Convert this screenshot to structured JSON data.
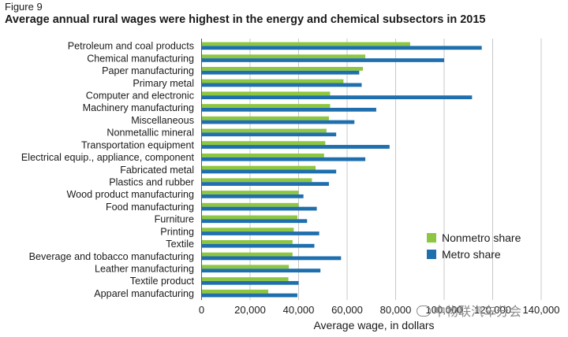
{
  "figure_label": "Figure 9",
  "chart_data": {
    "type": "bar",
    "orientation": "horizontal",
    "title": "Average annual rural wages were highest in the energy and chemical subsectors in 2015",
    "xlabel": "Average wage, in dollars",
    "ylabel": "",
    "xlim": [
      0,
      140000
    ],
    "xticks": [
      0,
      20000,
      40000,
      60000,
      80000,
      100000,
      120000,
      140000
    ],
    "xtick_labels": [
      "0",
      "20,000",
      "40,000",
      "60,000",
      "80,000",
      "100,000",
      "120,000",
      "140,000"
    ],
    "grid": "vertical",
    "legend_position": "bottom-right",
    "categories": [
      "Petroleum and coal products",
      "Chemical manufacturing",
      "Paper manufacturing",
      "Primary metal",
      "Computer and electronic",
      "Machinery manufacturing",
      "Miscellaneous",
      "Nonmetallic mineral",
      "Transportation equipment",
      "Electrical equip., appliance, component",
      "Fabricated metal",
      "Plastics and rubber",
      "Wood product manufacturing",
      "Food manufacturing",
      "Furniture",
      "Printing",
      "Textile",
      "Beverage and tobacco manufacturing",
      "Leather manufacturing",
      "Textile product",
      "Apparel manufacturing"
    ],
    "series": [
      {
        "name": "Nonmetro share",
        "color": "#8dc63f",
        "values": [
          86000,
          67500,
          66500,
          58500,
          53000,
          53000,
          52500,
          51500,
          51000,
          50500,
          47000,
          45500,
          40000,
          40000,
          39500,
          38000,
          37500,
          37500,
          36000,
          35800,
          27500
        ]
      },
      {
        "name": "Metro share",
        "color": "#1f6fae",
        "values": [
          115500,
          100000,
          65000,
          66000,
          111500,
          72000,
          63000,
          55500,
          77500,
          67500,
          55500,
          52500,
          42000,
          47500,
          43500,
          48500,
          46500,
          57500,
          49000,
          40000,
          39500
        ]
      }
    ]
  },
  "watermark": "中物联汽车分会"
}
